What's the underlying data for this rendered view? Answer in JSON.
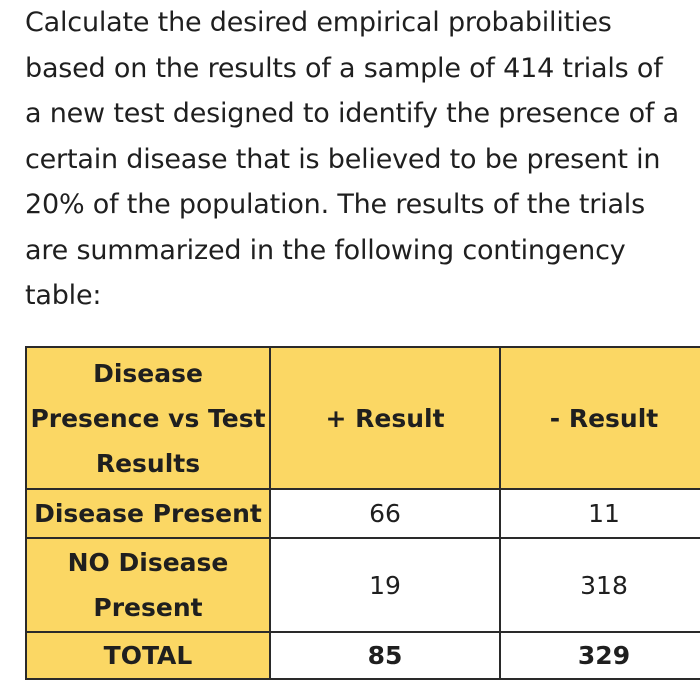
{
  "question": "Calculate the desired empirical probabilities based on the results of a sample of 414 trials of a new test designed to identify the presence of a certain disease that is believed to be present in 20% of the population. The results of the trials are summarized in the following contingency table:",
  "table": {
    "header": {
      "corner": "Disease Presence vs Test Results",
      "positive": "+ Result",
      "negative": "- Result"
    },
    "rows": [
      {
        "label": "Disease Present",
        "positive": "66",
        "negative": "11"
      },
      {
        "label": "NO Disease Present",
        "positive": "19",
        "negative": "318"
      },
      {
        "label": "TOTAL",
        "positive": "85",
        "negative": "329"
      }
    ]
  },
  "colors": {
    "header_fill": "#fbd764",
    "border": "#2a2a2a",
    "text": "#1f1f1f"
  }
}
